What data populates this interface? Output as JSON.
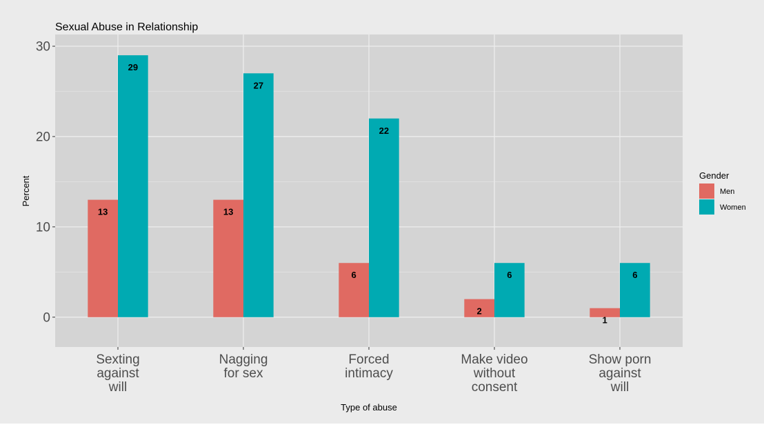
{
  "chart_data": {
    "type": "bar",
    "title": "Sexual Abuse in Relationship",
    "xlabel": "Type of abuse",
    "ylabel": "Percent",
    "categories": [
      [
        "Sexting",
        "against",
        "will"
      ],
      [
        "Nagging",
        "for sex"
      ],
      [
        "Forced",
        "intimacy"
      ],
      [
        "Make video",
        "without",
        "consent"
      ],
      [
        "Show porn",
        "against",
        "will"
      ]
    ],
    "series": [
      {
        "name": "Men",
        "color": "#e06a62",
        "values": [
          13,
          13,
          6,
          2,
          1
        ]
      },
      {
        "name": "Women",
        "color": "#00aab2",
        "values": [
          29,
          27,
          22,
          6,
          6
        ]
      }
    ],
    "ylim": [
      -3.3,
      31.3
    ],
    "yticks": [
      0,
      10,
      20,
      30
    ],
    "grid": true,
    "legend": {
      "title": "Gender",
      "placement": "right"
    }
  }
}
